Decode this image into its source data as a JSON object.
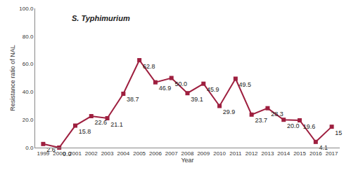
{
  "chart_data": {
    "type": "line",
    "title": "S. Typhimurium",
    "x_label": "Year",
    "y_label": "Resistance ratio of NAL",
    "categories": [
      "1999",
      "2000",
      "2001",
      "2002",
      "2003",
      "2004",
      "2005",
      "2006",
      "2007",
      "2008",
      "2009",
      "2010",
      "2011",
      "2012",
      "2013",
      "2014",
      "2015",
      "2016",
      "2017"
    ],
    "values": [
      2.6,
      0.0,
      15.8,
      22.6,
      21.1,
      38.7,
      62.8,
      46.9,
      50.0,
      39.1,
      45.9,
      29.9,
      49.5,
      23.7,
      28.3,
      20.0,
      19.6,
      4.1,
      15
    ],
    "value_labels": [
      "2.6",
      "0.0",
      "15.8",
      "22.6",
      "21.1",
      "38.7",
      "62.8",
      "46.9",
      "50.0",
      "39.1",
      "45.9",
      "29.9",
      "49.5",
      "23.7",
      "28.3",
      "20.0",
      "19.6",
      "4.1",
      "15"
    ],
    "data_labels": true,
    "color": "#9e1f3f",
    "marker": "square",
    "ylim": [
      0,
      100
    ],
    "yticks": [
      {
        "value": 0,
        "label": "0.0"
      },
      {
        "value": 20,
        "label": "20.0"
      },
      {
        "value": 40,
        "label": "40.0"
      },
      {
        "value": 60,
        "label": "60.0"
      },
      {
        "value": 80,
        "label": "80.0"
      },
      {
        "value": 100,
        "label": "100.0"
      }
    ],
    "grid": false
  }
}
